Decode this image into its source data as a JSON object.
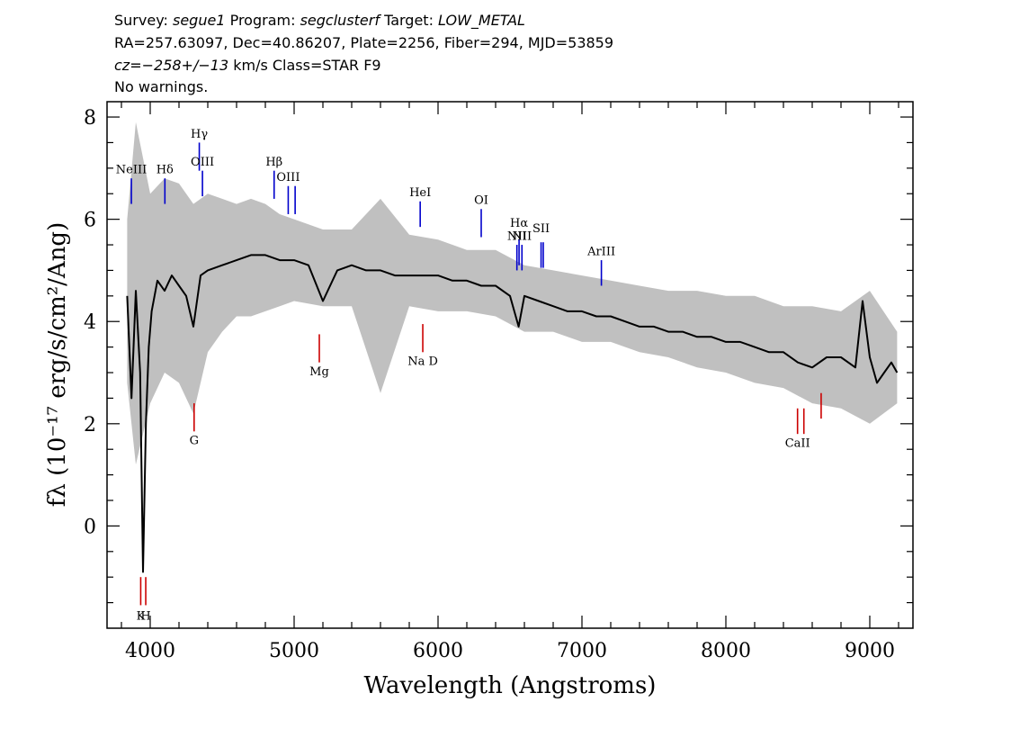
{
  "header": {
    "line1": {
      "survey_label": "Survey:",
      "survey": "segue1",
      "program_label": "Program:",
      "program": "segclusterf",
      "target_label": "Target:",
      "target": "LOW_METAL"
    },
    "line2": "RA=257.63097, Dec=40.86207, Plate=2256, Fiber=294, MJD=53859",
    "line3": {
      "cz_label": "cz=",
      "cz": "−258+/−13",
      "unit": "km/s Class=STAR F9"
    },
    "line4": "No warnings."
  },
  "chart_data": {
    "type": "line",
    "xlabel": "Wavelength (Angstroms)",
    "ylabel": "fλ (10⁻¹⁷ erg/s/cm²/Ang)",
    "xlim": [
      3700,
      9300
    ],
    "ylim": [
      -2,
      8.3
    ],
    "x_ticks": [
      4000,
      5000,
      6000,
      7000,
      8000,
      9000
    ],
    "y_ticks": [
      0,
      2,
      4,
      6,
      8
    ],
    "grid": false,
    "series": [
      {
        "role": "flux",
        "color": "#000000",
        "x": [
          3840,
          3870,
          3900,
          3930,
          3950,
          3970,
          3990,
          4010,
          4050,
          4100,
          4150,
          4200,
          4250,
          4300,
          4350,
          4400,
          4500,
          4600,
          4700,
          4800,
          4900,
          5000,
          5100,
          5200,
          5300,
          5400,
          5500,
          5600,
          5700,
          5800,
          5900,
          6000,
          6100,
          6200,
          6300,
          6400,
          6500,
          6560,
          6600,
          6700,
          6800,
          6900,
          7000,
          7100,
          7200,
          7300,
          7400,
          7500,
          7600,
          7700,
          7800,
          7900,
          8000,
          8100,
          8200,
          8300,
          8400,
          8500,
          8600,
          8700,
          8800,
          8900,
          8950,
          9000,
          9050,
          9100,
          9150,
          9190
        ],
        "y": [
          4.5,
          2.5,
          4.6,
          3.0,
          -0.9,
          2.0,
          3.5,
          4.2,
          4.8,
          4.6,
          4.9,
          4.7,
          4.5,
          3.9,
          4.9,
          5.0,
          5.1,
          5.2,
          5.3,
          5.3,
          5.2,
          5.2,
          5.1,
          4.4,
          5.0,
          5.1,
          5.0,
          5.0,
          4.9,
          4.9,
          4.9,
          4.9,
          4.8,
          4.8,
          4.7,
          4.7,
          4.5,
          3.9,
          4.5,
          4.4,
          4.3,
          4.2,
          4.2,
          4.1,
          4.1,
          4.0,
          3.9,
          3.9,
          3.8,
          3.8,
          3.7,
          3.7,
          3.6,
          3.6,
          3.5,
          3.4,
          3.4,
          3.2,
          3.1,
          3.3,
          3.3,
          3.1,
          4.4,
          3.3,
          2.8,
          3.0,
          3.2,
          3.0
        ]
      },
      {
        "role": "noise-envelope",
        "color": "#c0c0c0",
        "x": [
          3840,
          3900,
          4000,
          4100,
          4200,
          4300,
          4400,
          4500,
          4600,
          4700,
          4800,
          4900,
          5000,
          5200,
          5400,
          5600,
          5800,
          6000,
          6200,
          6400,
          6600,
          6800,
          7000,
          7200,
          7400,
          7600,
          7800,
          8000,
          8200,
          8400,
          8600,
          8800,
          9000,
          9190
        ],
        "upper": [
          6.0,
          7.9,
          6.5,
          6.8,
          6.7,
          6.3,
          6.5,
          6.4,
          6.3,
          6.4,
          6.3,
          6.1,
          6.0,
          5.8,
          5.8,
          6.4,
          5.7,
          5.6,
          5.4,
          5.4,
          5.1,
          5.0,
          4.9,
          4.8,
          4.7,
          4.6,
          4.6,
          4.5,
          4.5,
          4.3,
          4.3,
          4.2,
          4.6,
          3.8
        ],
        "lower": [
          2.8,
          1.2,
          2.4,
          3.0,
          2.8,
          2.2,
          3.4,
          3.8,
          4.1,
          4.1,
          4.2,
          4.3,
          4.4,
          4.3,
          4.3,
          2.6,
          4.3,
          4.2,
          4.2,
          4.1,
          3.8,
          3.8,
          3.6,
          3.6,
          3.4,
          3.3,
          3.1,
          3.0,
          2.8,
          2.7,
          2.4,
          2.3,
          2.0,
          2.4
        ]
      }
    ],
    "emission_lines": [
      {
        "label": "NeIII",
        "wave": 3869,
        "y1": 6.3,
        "y2": 6.8,
        "label_y": 6.9
      },
      {
        "label": "Hδ",
        "wave": 4102,
        "y1": 6.3,
        "y2": 6.8,
        "label_y": 6.9
      },
      {
        "label": "Hγ",
        "wave": 4341,
        "y1": 6.95,
        "y2": 7.5,
        "label_y": 7.6
      },
      {
        "label": "OIII",
        "wave": 4363,
        "y1": 6.45,
        "y2": 6.95,
        "label_y": 7.05
      },
      {
        "label": "Hβ",
        "wave": 4861,
        "y1": 6.4,
        "y2": 6.95,
        "label_y": 7.05
      },
      {
        "label": "OIII",
        "wave": 4959,
        "y1": 6.1,
        "y2": 6.65,
        "label_y": 6.75
      },
      {
        "label": "OIII",
        "wave": 5007,
        "y1": 6.1,
        "y2": 6.65,
        "label_y": null
      },
      {
        "label": "HeI",
        "wave": 5876,
        "y1": 5.85,
        "y2": 6.35,
        "label_y": 6.45
      },
      {
        "label": "OI",
        "wave": 6300,
        "y1": 5.65,
        "y2": 6.2,
        "label_y": 6.3
      },
      {
        "label": "NII",
        "wave": 6548,
        "y1": 5.0,
        "y2": 5.5,
        "label_y": 5.6
      },
      {
        "label": "Hα",
        "wave": 6563,
        "y1": 5.1,
        "y2": 5.6,
        "label_y": 5.85
      },
      {
        "label": "NII",
        "wave": 6583,
        "y1": 5.0,
        "y2": 5.5,
        "label_y": 5.6
      },
      {
        "label": "SII",
        "wave": 6716,
        "y1": 5.05,
        "y2": 5.55,
        "label_y": 5.75
      },
      {
        "label": "SII",
        "wave": 6731,
        "y1": 5.05,
        "y2": 5.55,
        "label_y": null
      },
      {
        "label": "ArIII",
        "wave": 7135,
        "y1": 4.7,
        "y2": 5.2,
        "label_y": 5.3
      }
    ],
    "absorption_lines": [
      {
        "label": "K",
        "wave": 3934,
        "y1": -1.55,
        "y2": -1.0,
        "label_y": -1.83
      },
      {
        "label": "H",
        "wave": 3969,
        "y1": -1.55,
        "y2": -1.0,
        "label_y": -1.83
      },
      {
        "label": "G",
        "wave": 4305,
        "y1": 1.85,
        "y2": 2.4,
        "label_y": 1.6
      },
      {
        "label": "Mg",
        "wave": 5175,
        "y1": 3.2,
        "y2": 3.75,
        "label_y": 2.95
      },
      {
        "label": "Na D",
        "wave": 5894,
        "y1": 3.4,
        "y2": 3.95,
        "label_y": 3.15
      },
      {
        "label": "CaII",
        "wave": 8498,
        "y1": 1.8,
        "y2": 2.3,
        "label_y": 1.55
      },
      {
        "label": "CaII",
        "wave": 8542,
        "y1": 1.8,
        "y2": 2.3,
        "label_y": null
      },
      {
        "label": "CaII",
        "wave": 8662,
        "y1": 2.1,
        "y2": 2.6,
        "label_y": null
      }
    ],
    "colors": {
      "emission": "#0000cc",
      "absorption": "#cc0000",
      "flux": "#000000",
      "noise": "#c0c0c0"
    }
  }
}
